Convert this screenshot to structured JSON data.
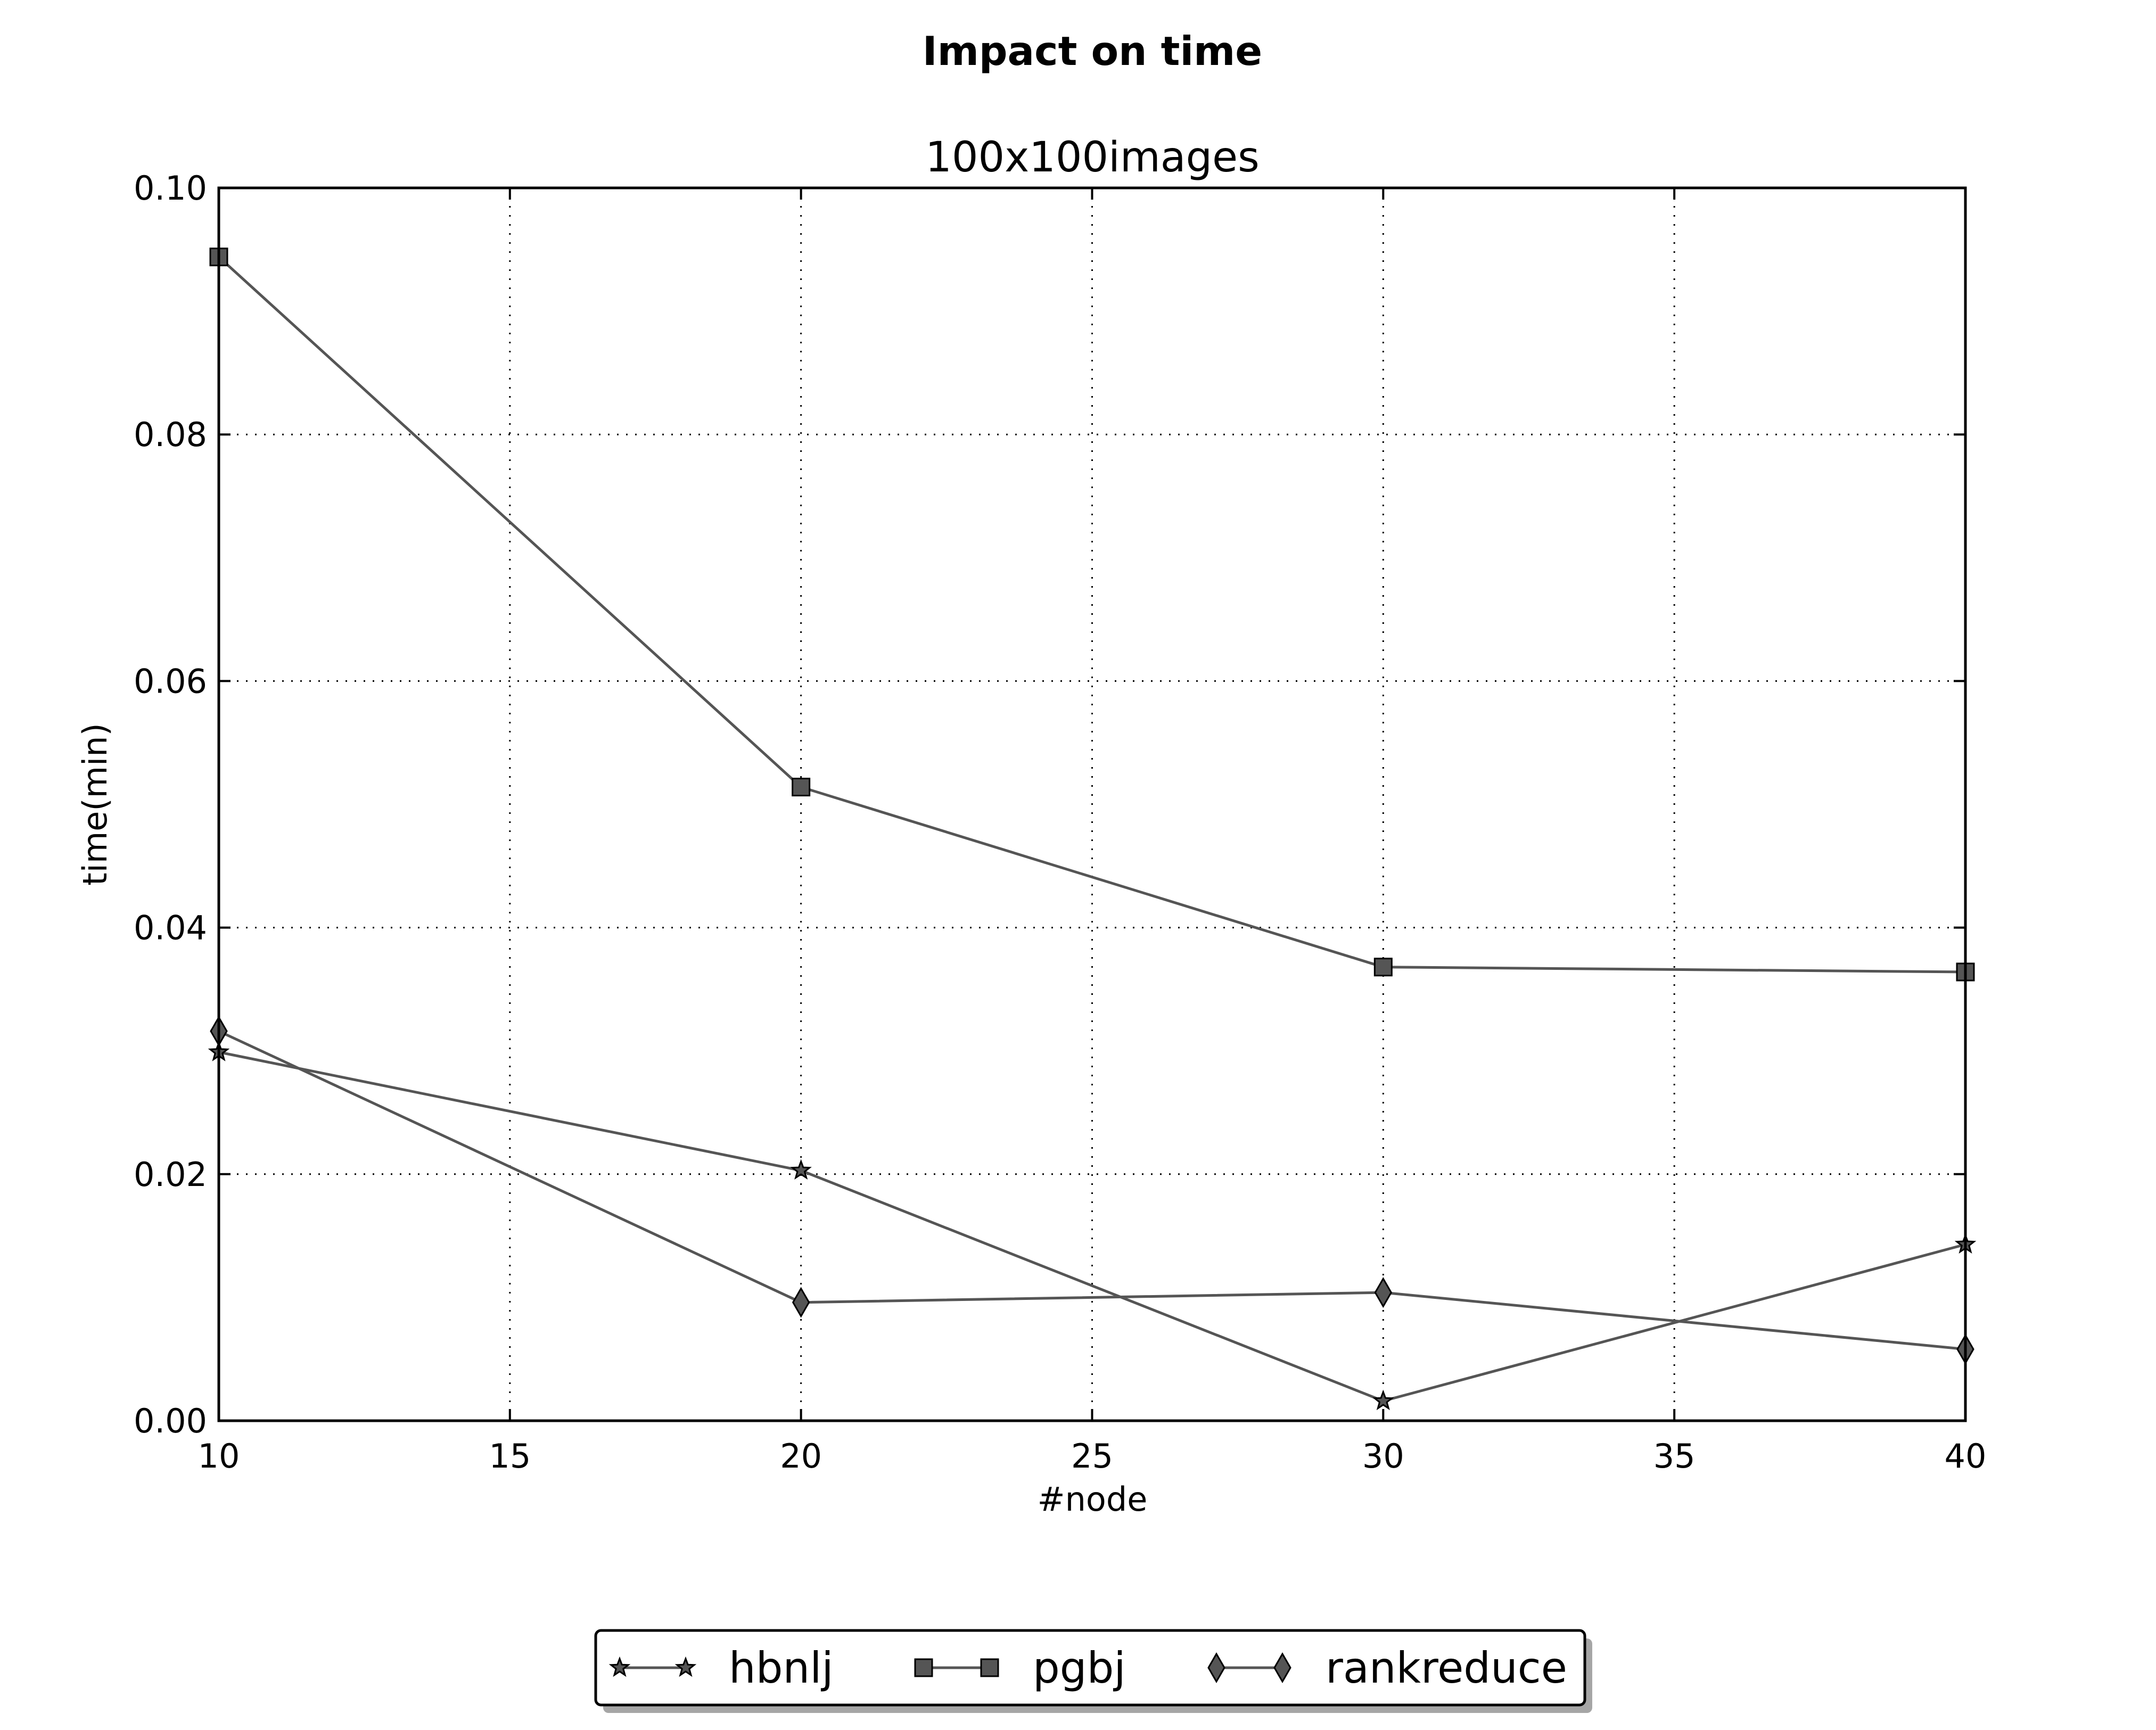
{
  "chart_data": {
    "type": "line",
    "suptitle": "Impact on time",
    "title": "100x100images",
    "xlabel": "#node",
    "ylabel": "time(min)",
    "xlim": [
      10,
      40
    ],
    "ylim": [
      0.0,
      0.1
    ],
    "xticks": [
      10,
      15,
      20,
      25,
      30,
      35,
      40
    ],
    "yticks": [
      0.0,
      0.02,
      0.04,
      0.06,
      0.08,
      0.1
    ],
    "xtick_labels": [
      "10",
      "15",
      "20",
      "25",
      "30",
      "35",
      "40"
    ],
    "ytick_labels": [
      "0.00",
      "0.02",
      "0.04",
      "0.06",
      "0.08",
      "0.10"
    ],
    "grid": true,
    "legend_position": "bottom-center",
    "x": [
      10,
      20,
      30,
      40
    ],
    "series": [
      {
        "name": "hbnlj",
        "marker": "star",
        "color": "#555555",
        "values": [
          0.0299,
          0.0203,
          0.0016,
          0.0143
        ]
      },
      {
        "name": "pgbj",
        "marker": "square",
        "color": "#555555",
        "values": [
          0.0944,
          0.0514,
          0.0368,
          0.0364
        ]
      },
      {
        "name": "rankreduce",
        "marker": "diamond",
        "color": "#555555",
        "values": [
          0.0316,
          0.0096,
          0.0104,
          0.0058
        ]
      }
    ]
  }
}
